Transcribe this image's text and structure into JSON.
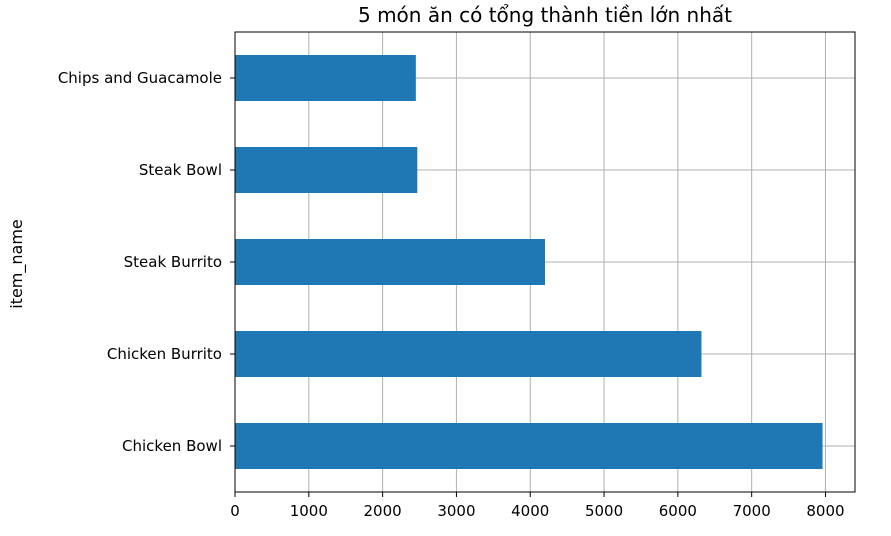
{
  "chart_data": {
    "type": "bar",
    "orientation": "horizontal",
    "title": "5 món ăn có tổng thành tiền lớn nhất",
    "xlabel": "",
    "ylabel": "item_name",
    "categories": [
      "Chicken Bowl",
      "Chicken Burrito",
      "Steak Burrito",
      "Steak Bowl",
      "Chips and Guacamole"
    ],
    "values": [
      7960,
      6320,
      4200,
      2470,
      2450
    ],
    "xlim": [
      0,
      8400
    ],
    "xticks": [
      0,
      1000,
      2000,
      3000,
      4000,
      5000,
      6000,
      7000,
      8000
    ],
    "xtick_labels": [
      "0",
      "1000",
      "2000",
      "3000",
      "4000",
      "5000",
      "6000",
      "7000",
      "8000"
    ],
    "grid": true,
    "bar_color": "#1f77b4"
  }
}
